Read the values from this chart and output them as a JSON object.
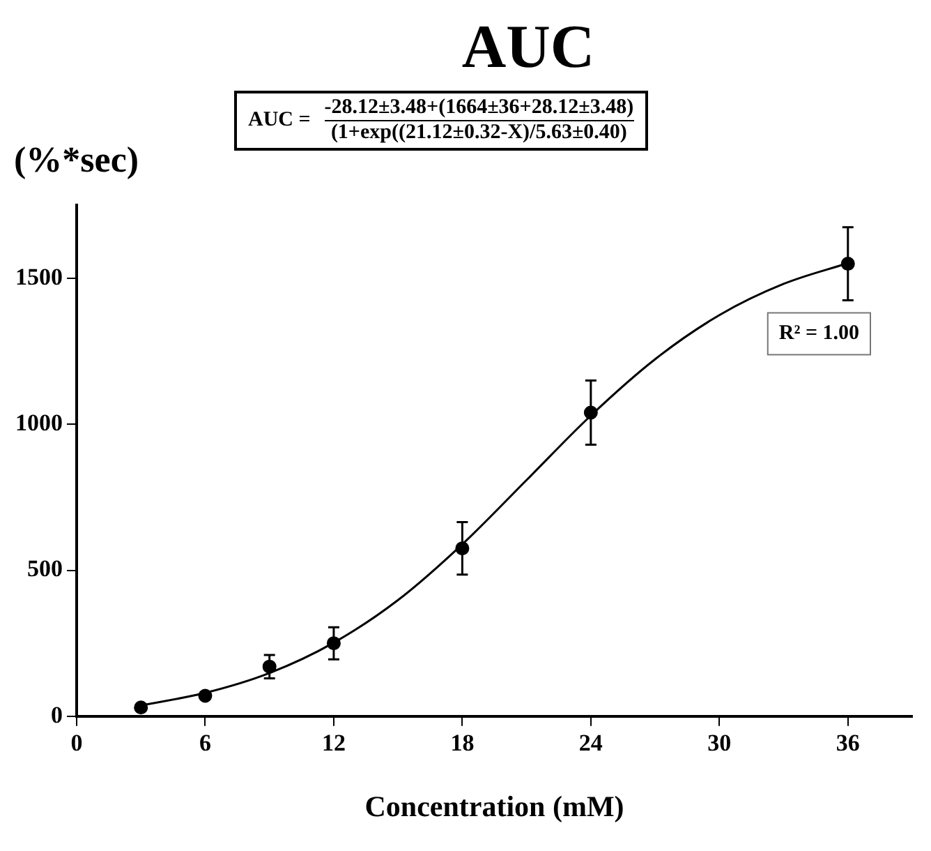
{
  "chart_data": {
    "type": "scatter",
    "title": "AUC",
    "xlabel": "Concentration (mM)",
    "ylabel": "(%*sec)",
    "annotations": [
      "AUC =",
      "-28.12±3.48+(1664±36+28.12±3.48)",
      "(1+exp((21.12±0.32-X)/5.63±0.40)",
      "R² = 1.00"
    ],
    "xlim": [
      0,
      39
    ],
    "xticks": [
      0,
      6,
      12,
      18,
      24,
      30,
      36
    ],
    "ylim": [
      0,
      1750
    ],
    "yticks": [
      0,
      500,
      1000,
      1500
    ],
    "grid": false,
    "legend": false,
    "series": [
      {
        "color": "#000000",
        "marker": "circle",
        "x": [
          3,
          6,
          9,
          12,
          18,
          24,
          36
        ],
        "values": [
          30,
          70,
          170,
          250,
          575,
          1040,
          1550
        ],
        "errors": [
          null,
          10,
          40,
          55,
          90,
          110,
          125
        ]
      },
      {
        "type": "line",
        "color": "#000000",
        "marker": "none",
        "line_style": "solid",
        "x": [
          3,
          6,
          9,
          12,
          15,
          18,
          21,
          24,
          27,
          30,
          33,
          36
        ],
        "values": [
          37,
          80,
          148,
          252,
          398,
          589,
          809,
          1030,
          1223,
          1374,
          1481,
          1552
        ]
      }
    ]
  }
}
